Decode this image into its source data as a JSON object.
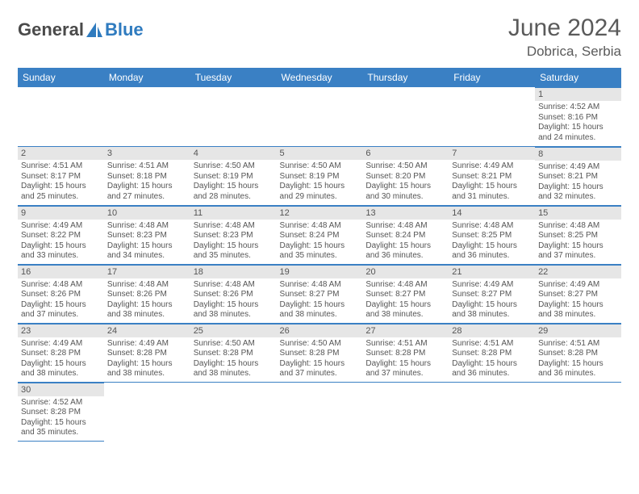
{
  "logo": {
    "text1": "General",
    "text2": "Blue"
  },
  "title": {
    "month_year": "June 2024",
    "location": "Dobrica, Serbia"
  },
  "colors": {
    "header_bg": "#3a80c4",
    "header_text": "#ffffff",
    "band_bg": "#e6e6e6",
    "border": "#3a80c4",
    "text": "#555555",
    "logo_gray": "#4a4a4a",
    "logo_blue": "#2f7bbf"
  },
  "day_headers": [
    "Sunday",
    "Monday",
    "Tuesday",
    "Wednesday",
    "Thursday",
    "Friday",
    "Saturday"
  ],
  "weeks": [
    [
      null,
      null,
      null,
      null,
      null,
      null,
      {
        "n": "1",
        "rise": "Sunrise: 4:52 AM",
        "set": "Sunset: 8:16 PM",
        "day": "Daylight: 15 hours and 24 minutes."
      }
    ],
    [
      {
        "n": "2",
        "rise": "Sunrise: 4:51 AM",
        "set": "Sunset: 8:17 PM",
        "day": "Daylight: 15 hours and 25 minutes."
      },
      {
        "n": "3",
        "rise": "Sunrise: 4:51 AM",
        "set": "Sunset: 8:18 PM",
        "day": "Daylight: 15 hours and 27 minutes."
      },
      {
        "n": "4",
        "rise": "Sunrise: 4:50 AM",
        "set": "Sunset: 8:19 PM",
        "day": "Daylight: 15 hours and 28 minutes."
      },
      {
        "n": "5",
        "rise": "Sunrise: 4:50 AM",
        "set": "Sunset: 8:19 PM",
        "day": "Daylight: 15 hours and 29 minutes."
      },
      {
        "n": "6",
        "rise": "Sunrise: 4:50 AM",
        "set": "Sunset: 8:20 PM",
        "day": "Daylight: 15 hours and 30 minutes."
      },
      {
        "n": "7",
        "rise": "Sunrise: 4:49 AM",
        "set": "Sunset: 8:21 PM",
        "day": "Daylight: 15 hours and 31 minutes."
      },
      {
        "n": "8",
        "rise": "Sunrise: 4:49 AM",
        "set": "Sunset: 8:21 PM",
        "day": "Daylight: 15 hours and 32 minutes."
      }
    ],
    [
      {
        "n": "9",
        "rise": "Sunrise: 4:49 AM",
        "set": "Sunset: 8:22 PM",
        "day": "Daylight: 15 hours and 33 minutes."
      },
      {
        "n": "10",
        "rise": "Sunrise: 4:48 AM",
        "set": "Sunset: 8:23 PM",
        "day": "Daylight: 15 hours and 34 minutes."
      },
      {
        "n": "11",
        "rise": "Sunrise: 4:48 AM",
        "set": "Sunset: 8:23 PM",
        "day": "Daylight: 15 hours and 35 minutes."
      },
      {
        "n": "12",
        "rise": "Sunrise: 4:48 AM",
        "set": "Sunset: 8:24 PM",
        "day": "Daylight: 15 hours and 35 minutes."
      },
      {
        "n": "13",
        "rise": "Sunrise: 4:48 AM",
        "set": "Sunset: 8:24 PM",
        "day": "Daylight: 15 hours and 36 minutes."
      },
      {
        "n": "14",
        "rise": "Sunrise: 4:48 AM",
        "set": "Sunset: 8:25 PM",
        "day": "Daylight: 15 hours and 36 minutes."
      },
      {
        "n": "15",
        "rise": "Sunrise: 4:48 AM",
        "set": "Sunset: 8:25 PM",
        "day": "Daylight: 15 hours and 37 minutes."
      }
    ],
    [
      {
        "n": "16",
        "rise": "Sunrise: 4:48 AM",
        "set": "Sunset: 8:26 PM",
        "day": "Daylight: 15 hours and 37 minutes."
      },
      {
        "n": "17",
        "rise": "Sunrise: 4:48 AM",
        "set": "Sunset: 8:26 PM",
        "day": "Daylight: 15 hours and 38 minutes."
      },
      {
        "n": "18",
        "rise": "Sunrise: 4:48 AM",
        "set": "Sunset: 8:26 PM",
        "day": "Daylight: 15 hours and 38 minutes."
      },
      {
        "n": "19",
        "rise": "Sunrise: 4:48 AM",
        "set": "Sunset: 8:27 PM",
        "day": "Daylight: 15 hours and 38 minutes."
      },
      {
        "n": "20",
        "rise": "Sunrise: 4:48 AM",
        "set": "Sunset: 8:27 PM",
        "day": "Daylight: 15 hours and 38 minutes."
      },
      {
        "n": "21",
        "rise": "Sunrise: 4:49 AM",
        "set": "Sunset: 8:27 PM",
        "day": "Daylight: 15 hours and 38 minutes."
      },
      {
        "n": "22",
        "rise": "Sunrise: 4:49 AM",
        "set": "Sunset: 8:27 PM",
        "day": "Daylight: 15 hours and 38 minutes."
      }
    ],
    [
      {
        "n": "23",
        "rise": "Sunrise: 4:49 AM",
        "set": "Sunset: 8:28 PM",
        "day": "Daylight: 15 hours and 38 minutes."
      },
      {
        "n": "24",
        "rise": "Sunrise: 4:49 AM",
        "set": "Sunset: 8:28 PM",
        "day": "Daylight: 15 hours and 38 minutes."
      },
      {
        "n": "25",
        "rise": "Sunrise: 4:50 AM",
        "set": "Sunset: 8:28 PM",
        "day": "Daylight: 15 hours and 38 minutes."
      },
      {
        "n": "26",
        "rise": "Sunrise: 4:50 AM",
        "set": "Sunset: 8:28 PM",
        "day": "Daylight: 15 hours and 37 minutes."
      },
      {
        "n": "27",
        "rise": "Sunrise: 4:51 AM",
        "set": "Sunset: 8:28 PM",
        "day": "Daylight: 15 hours and 37 minutes."
      },
      {
        "n": "28",
        "rise": "Sunrise: 4:51 AM",
        "set": "Sunset: 8:28 PM",
        "day": "Daylight: 15 hours and 36 minutes."
      },
      {
        "n": "29",
        "rise": "Sunrise: 4:51 AM",
        "set": "Sunset: 8:28 PM",
        "day": "Daylight: 15 hours and 36 minutes."
      }
    ],
    [
      {
        "n": "30",
        "rise": "Sunrise: 4:52 AM",
        "set": "Sunset: 8:28 PM",
        "day": "Daylight: 15 hours and 35 minutes."
      },
      null,
      null,
      null,
      null,
      null,
      null
    ]
  ]
}
